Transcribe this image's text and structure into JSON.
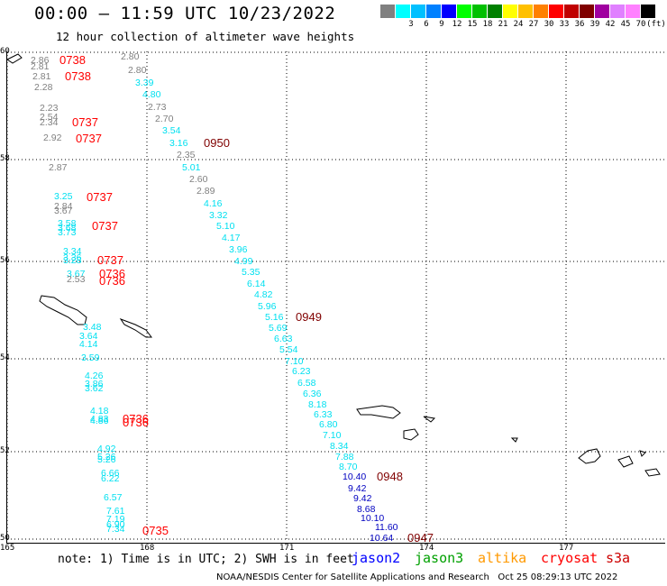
{
  "header": {
    "title": "00:00 – 11:59 UTC 10/23/2022",
    "subtitle": "12 hour collection of altimeter wave heights"
  },
  "legend": {
    "units": "(ft)",
    "bins": [
      {
        "label": "",
        "color": "#808080"
      },
      {
        "label": "3",
        "color": "#00ffff"
      },
      {
        "label": "6",
        "color": "#00c0ff"
      },
      {
        "label": "9",
        "color": "#0080ff"
      },
      {
        "label": "12",
        "color": "#0000ff"
      },
      {
        "label": "15",
        "color": "#00ff00"
      },
      {
        "label": "18",
        "color": "#00c000"
      },
      {
        "label": "21",
        "color": "#008000"
      },
      {
        "label": "24",
        "color": "#ffff00"
      },
      {
        "label": "27",
        "color": "#ffc000"
      },
      {
        "label": "30",
        "color": "#ff8000"
      },
      {
        "label": "33",
        "color": "#ff0000"
      },
      {
        "label": "36",
        "color": "#c00000"
      },
      {
        "label": "39",
        "color": "#800000"
      },
      {
        "label": "42",
        "color": "#a000a0"
      },
      {
        "label": "45",
        "color": "#e080ff"
      },
      {
        "label": "70",
        "color": "#ff80ff"
      },
      {
        "label": "",
        "color": "#000000"
      }
    ]
  },
  "map": {
    "lat_labels": [
      "60",
      "58",
      "56",
      "54",
      "52",
      "50"
    ],
    "lon_labels": [
      "165",
      "168",
      "171",
      "174",
      "177"
    ],
    "colors": {
      "gray": "#808080",
      "cyan": "#00e0f0",
      "blue": "#0000c0",
      "red": "#ff0000",
      "darkred": "#800000"
    },
    "heights": [
      {
        "v": "2.86",
        "c": "gray"
      },
      {
        "v": "2.81",
        "c": "gray"
      },
      {
        "v": "2.81",
        "c": "gray"
      },
      {
        "v": "2.28",
        "c": "gray"
      },
      {
        "v": "2.23",
        "c": "gray"
      },
      {
        "v": "2.54",
        "c": "gray"
      },
      {
        "v": "2.34",
        "c": "gray"
      },
      {
        "v": "2.92",
        "c": "gray"
      },
      {
        "v": "2.87",
        "c": "gray"
      },
      {
        "v": "3.25",
        "c": "cyan"
      },
      {
        "v": "2.84",
        "c": "gray"
      },
      {
        "v": "3.67",
        "c": "gray"
      },
      {
        "v": "3.58",
        "c": "cyan"
      },
      {
        "v": "3.68",
        "c": "cyan"
      },
      {
        "v": "3.73",
        "c": "cyan"
      },
      {
        "v": "3.34",
        "c": "cyan"
      },
      {
        "v": "3.36",
        "c": "cyan"
      },
      {
        "v": "3.28",
        "c": "cyan"
      },
      {
        "v": "3.67",
        "c": "cyan"
      },
      {
        "v": "2.53",
        "c": "gray"
      },
      {
        "v": "3.48",
        "c": "cyan"
      },
      {
        "v": "3.64",
        "c": "cyan"
      },
      {
        "v": "4.14",
        "c": "cyan"
      },
      {
        "v": "3.59",
        "c": "cyan"
      },
      {
        "v": "4.26",
        "c": "cyan"
      },
      {
        "v": "3.86",
        "c": "cyan"
      },
      {
        "v": "3.62",
        "c": "cyan"
      },
      {
        "v": "4.18",
        "c": "cyan"
      },
      {
        "v": "4.83",
        "c": "cyan"
      },
      {
        "v": "4.86",
        "c": "cyan"
      },
      {
        "v": "4.92",
        "c": "cyan"
      },
      {
        "v": "5.26",
        "c": "cyan"
      },
      {
        "v": "5.26",
        "c": "cyan"
      },
      {
        "v": "6.66",
        "c": "cyan"
      },
      {
        "v": "6.22",
        "c": "cyan"
      },
      {
        "v": "6.57",
        "c": "cyan"
      },
      {
        "v": "7.61",
        "c": "cyan"
      },
      {
        "v": "7.19",
        "c": "cyan"
      },
      {
        "v": "6.90",
        "c": "cyan"
      },
      {
        "v": "7.34",
        "c": "cyan"
      },
      {
        "v": "2.80",
        "c": "gray"
      },
      {
        "v": "2.80",
        "c": "gray"
      },
      {
        "v": "3.39",
        "c": "cyan"
      },
      {
        "v": "4.80",
        "c": "cyan"
      },
      {
        "v": "2.73",
        "c": "gray"
      },
      {
        "v": "2.70",
        "c": "gray"
      },
      {
        "v": "3.54",
        "c": "cyan"
      },
      {
        "v": "3.16",
        "c": "cyan"
      },
      {
        "v": "2.35",
        "c": "gray"
      },
      {
        "v": "5.01",
        "c": "cyan"
      },
      {
        "v": "2.60",
        "c": "gray"
      },
      {
        "v": "2.89",
        "c": "gray"
      },
      {
        "v": "4.16",
        "c": "cyan"
      },
      {
        "v": "3.32",
        "c": "cyan"
      },
      {
        "v": "5.10",
        "c": "cyan"
      },
      {
        "v": "4.17",
        "c": "cyan"
      },
      {
        "v": "3.96",
        "c": "cyan"
      },
      {
        "v": "4.99",
        "c": "cyan"
      },
      {
        "v": "5.35",
        "c": "cyan"
      },
      {
        "v": "6.14",
        "c": "cyan"
      },
      {
        "v": "4.82",
        "c": "cyan"
      },
      {
        "v": "5.96",
        "c": "cyan"
      },
      {
        "v": "5.16",
        "c": "cyan"
      },
      {
        "v": "5.69",
        "c": "cyan"
      },
      {
        "v": "6.63",
        "c": "cyan"
      },
      {
        "v": "5.54",
        "c": "cyan"
      },
      {
        "v": "7.10",
        "c": "cyan"
      },
      {
        "v": "6.23",
        "c": "cyan"
      },
      {
        "v": "6.58",
        "c": "cyan"
      },
      {
        "v": "6.36",
        "c": "cyan"
      },
      {
        "v": "8.18",
        "c": "cyan"
      },
      {
        "v": "6.33",
        "c": "cyan"
      },
      {
        "v": "6.80",
        "c": "cyan"
      },
      {
        "v": "7.10",
        "c": "cyan"
      },
      {
        "v": "8.34",
        "c": "cyan"
      },
      {
        "v": "7.88",
        "c": "cyan"
      },
      {
        "v": "8.70",
        "c": "cyan"
      },
      {
        "v": "10.40",
        "c": "blue"
      },
      {
        "v": "9.42",
        "c": "blue"
      },
      {
        "v": "9.42",
        "c": "blue"
      },
      {
        "v": "8.68",
        "c": "blue"
      },
      {
        "v": "10.10",
        "c": "blue"
      },
      {
        "v": "11.60",
        "c": "blue"
      },
      {
        "v": "10.64",
        "c": "blue"
      }
    ],
    "times": [
      {
        "t": "0738",
        "c": "red"
      },
      {
        "t": "0738",
        "c": "red"
      },
      {
        "t": "0737",
        "c": "red"
      },
      {
        "t": "0737",
        "c": "red"
      },
      {
        "t": "0737",
        "c": "red"
      },
      {
        "t": "0737",
        "c": "red"
      },
      {
        "t": "0737",
        "c": "red"
      },
      {
        "t": "0736",
        "c": "red"
      },
      {
        "t": "0736",
        "c": "red"
      },
      {
        "t": "0736",
        "c": "red"
      },
      {
        "t": "0736",
        "c": "red"
      },
      {
        "t": "0735",
        "c": "red"
      },
      {
        "t": "0950",
        "c": "darkred"
      },
      {
        "t": "0949",
        "c": "darkred"
      },
      {
        "t": "0948",
        "c": "darkred"
      },
      {
        "t": "0947",
        "c": "darkred"
      }
    ]
  },
  "footer": {
    "note": "note: 1) Time is in UTC; 2) SWH is in feet",
    "satellites": [
      {
        "name": "jason2",
        "color": "#0000ff"
      },
      {
        "name": "jason3",
        "color": "#00a000"
      },
      {
        "name": "altika",
        "color": "#ff9900"
      },
      {
        "name": "cryosat",
        "color": "#ff0000"
      },
      {
        "name": "s3a",
        "color": "#cc0000"
      }
    ],
    "credit": "NOAA/NESDIS Center for Satellite Applications and Research   Oct 25 08:29:13 UTC 2022"
  }
}
